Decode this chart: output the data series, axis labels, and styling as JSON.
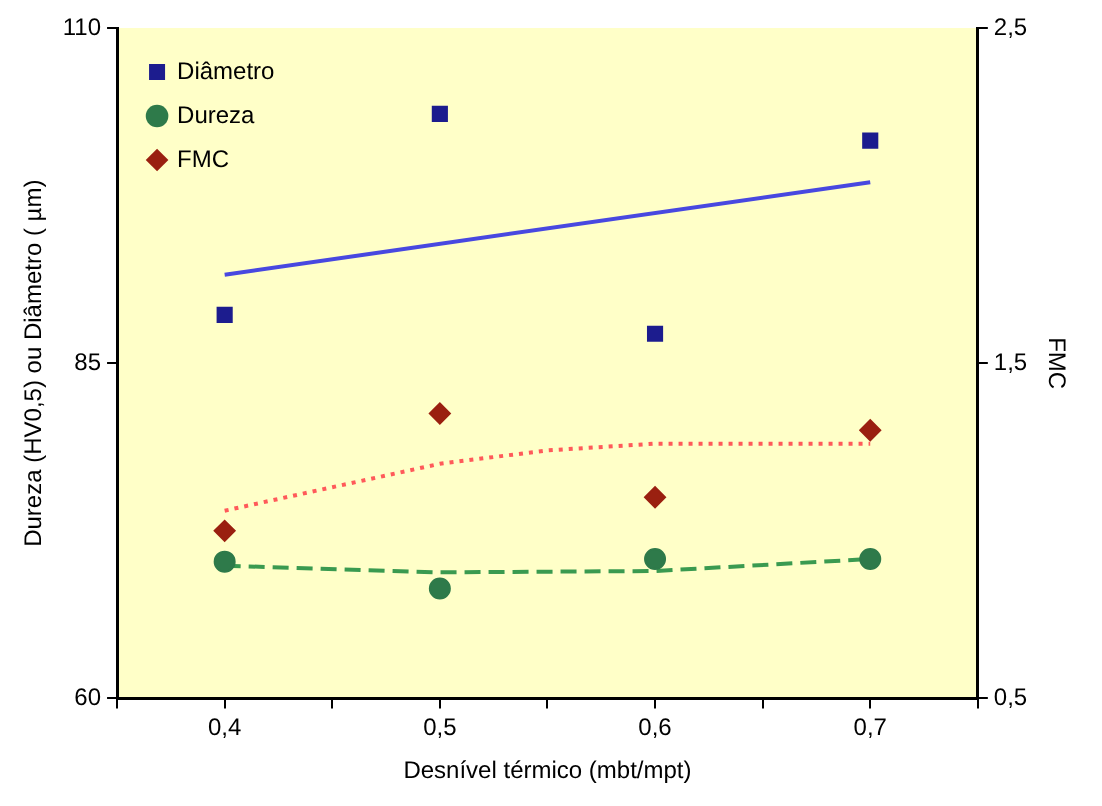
{
  "chart_data": {
    "type": "scatter",
    "xlabel": "Desnível térmico (mbt/mpt)",
    "ylabel": "Dureza (HV0,5) ou Diâmetro ( µm)",
    "y2label": "FMC",
    "x": [
      0.4,
      0.5,
      0.6,
      0.7
    ],
    "series": [
      {
        "name": "Diâmetro",
        "color": "#1c1c8e",
        "marker": "square",
        "values": [
          88.6,
          103.6,
          87.2,
          101.6
        ]
      },
      {
        "name": "Dureza",
        "color": "#2e7a4a",
        "marker": "circle",
        "values": [
          70.2,
          68.2,
          70.4,
          70.4
        ]
      },
      {
        "name": "FMC",
        "color": "#9a2010",
        "marker": "diamond",
        "axis": "y2",
        "values": [
          1.0,
          1.35,
          1.1,
          1.3
        ]
      },
      {
        "type": "line",
        "color": "#4848e0",
        "marker": "none",
        "line_style": "solid",
        "x": [
          0.4,
          0.7
        ],
        "values": [
          91.6,
          98.5
        ]
      },
      {
        "type": "line",
        "color": "#ff5a5a",
        "marker": "none",
        "line_style": "dotted",
        "axis": "y2",
        "x": [
          0.4,
          0.45,
          0.5,
          0.55,
          0.6,
          0.65,
          0.7
        ],
        "values": [
          1.06,
          1.13,
          1.2,
          1.24,
          1.26,
          1.26,
          1.26
        ]
      },
      {
        "type": "line",
        "color": "#3a9a50",
        "marker": "none",
        "line_style": "dashed",
        "x": [
          0.4,
          0.5,
          0.6,
          0.7
        ],
        "values": [
          69.9,
          69.4,
          69.5,
          70.4
        ]
      }
    ],
    "xlim": [
      0.35,
      0.75
    ],
    "xticks": [
      {
        "value": 0.35,
        "label": null
      },
      {
        "value": 0.4,
        "label": "0,4"
      },
      {
        "value": 0.45,
        "label": null
      },
      {
        "value": 0.5,
        "label": "0,5"
      },
      {
        "value": 0.55,
        "label": null
      },
      {
        "value": 0.6,
        "label": "0,6"
      },
      {
        "value": 0.65,
        "label": null
      },
      {
        "value": 0.7,
        "label": "0,7"
      },
      {
        "value": 0.75,
        "label": null
      }
    ],
    "ylim": [
      60,
      110
    ],
    "yticks": [
      60,
      85,
      110
    ],
    "y2lim": [
      0.5,
      2.5
    ],
    "y2ticks": [
      {
        "value": 0.5,
        "label": "0,5"
      },
      {
        "value": 1.5,
        "label": "1,5"
      },
      {
        "value": 2.5,
        "label": "2,5"
      }
    ],
    "grid": false,
    "legend": "top left"
  }
}
